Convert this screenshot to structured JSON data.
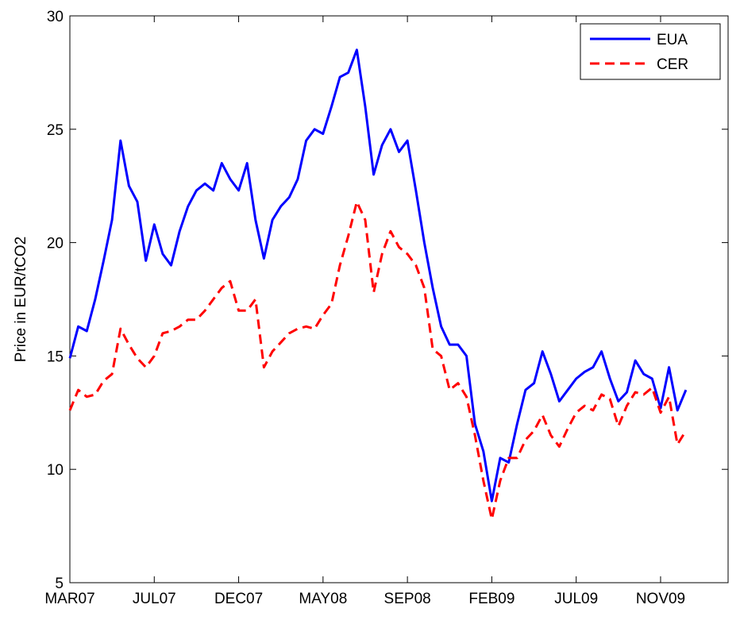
{
  "chart_data": {
    "type": "line",
    "ylabel": "Price in EUR/tCO2",
    "x": [
      0,
      10,
      20,
      30,
      40,
      50,
      60,
      70,
      80,
      90,
      100,
      110,
      120,
      130,
      140,
      150,
      160,
      170,
      180,
      190,
      200,
      210,
      220,
      230,
      240,
      250,
      260,
      270,
      280,
      290,
      300,
      310,
      320,
      330,
      340,
      350,
      360,
      370,
      380,
      390,
      400,
      410,
      420,
      430,
      440,
      450,
      460,
      470,
      480,
      490,
      500,
      510,
      520,
      530,
      540,
      550,
      560,
      570,
      580,
      590,
      600,
      610,
      620,
      630,
      640,
      650,
      660,
      670,
      680,
      690,
      700,
      710,
      720,
      730
    ],
    "series": [
      {
        "name": "EUA",
        "color": "#0000ff",
        "dash": "solid",
        "values": [
          14.9,
          16.3,
          16.1,
          17.5,
          19.2,
          21.0,
          24.5,
          22.5,
          21.8,
          19.2,
          20.8,
          19.5,
          19.0,
          20.5,
          21.6,
          22.3,
          22.6,
          22.3,
          23.5,
          22.8,
          22.3,
          23.5,
          21.0,
          19.3,
          21.0,
          21.6,
          22.0,
          22.8,
          24.5,
          25.0,
          24.8,
          26.0,
          27.3,
          27.5,
          28.5,
          26.0,
          23.0,
          24.3,
          25.0,
          24.0,
          24.5,
          22.3,
          20.0,
          18.0,
          16.3,
          15.5,
          15.5,
          15.0,
          12.0,
          10.8,
          8.6,
          10.5,
          10.3,
          12.0,
          13.5,
          13.8,
          15.2,
          14.2,
          13.0,
          13.5,
          14.0,
          14.3,
          14.5,
          15.2,
          14.0,
          13.0,
          13.4,
          14.8,
          14.2,
          14.0,
          12.7,
          14.5,
          12.6,
          13.5
        ]
      },
      {
        "name": "CER",
        "color": "#ff0000",
        "dash": "dashed",
        "values": [
          12.6,
          13.5,
          13.2,
          13.3,
          13.9,
          14.2,
          16.2,
          15.5,
          14.9,
          14.5,
          15.0,
          16.0,
          16.1,
          16.3,
          16.6,
          16.6,
          17.0,
          17.5,
          18.0,
          18.3,
          17.0,
          17.0,
          17.5,
          14.5,
          15.2,
          15.6,
          16.0,
          16.2,
          16.3,
          16.2,
          16.8,
          17.3,
          19.0,
          20.3,
          21.8,
          21.0,
          17.8,
          19.5,
          20.5,
          19.8,
          19.5,
          19.0,
          18.0,
          15.3,
          15.0,
          13.5,
          13.8,
          13.2,
          11.5,
          9.5,
          7.8,
          9.5,
          10.5,
          10.5,
          11.3,
          11.7,
          12.4,
          11.5,
          11.0,
          11.8,
          12.5,
          12.8,
          12.6,
          13.3,
          13.1,
          11.9,
          12.8,
          13.4,
          13.3,
          13.6,
          12.5,
          13.2,
          11.1,
          11.7
        ]
      }
    ],
    "xlim": [
      0,
      780
    ],
    "xticks": [
      {
        "value": 0,
        "label": "MAR07"
      },
      {
        "value": 100,
        "label": "JUL07"
      },
      {
        "value": 200,
        "label": "DEC07"
      },
      {
        "value": 300,
        "label": "MAY08"
      },
      {
        "value": 400,
        "label": "SEP08"
      },
      {
        "value": 500,
        "label": "FEB09"
      },
      {
        "value": 600,
        "label": "JUL09"
      },
      {
        "value": 700,
        "label": "NOV09"
      }
    ],
    "ylim": [
      5,
      30
    ],
    "yticks": [
      5,
      10,
      15,
      20,
      25,
      30
    ],
    "grid": false,
    "legend": "top-right"
  }
}
